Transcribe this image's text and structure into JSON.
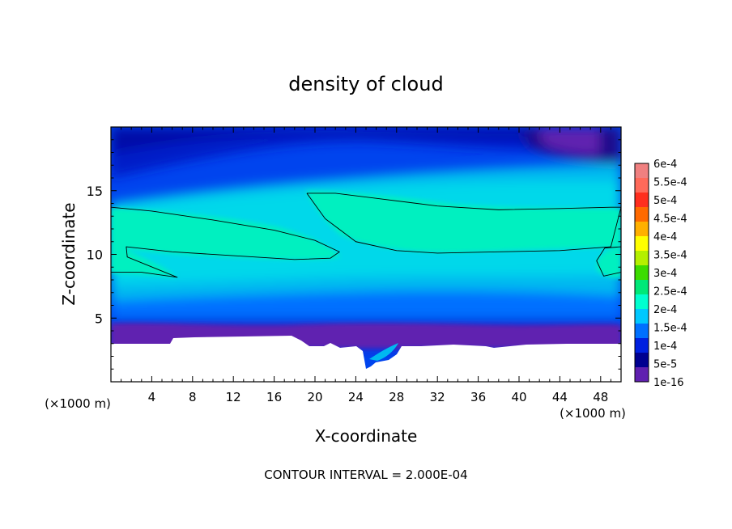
{
  "chart_data": {
    "type": "heatmap",
    "title": "density of cloud",
    "xlabel": "X-coordinate",
    "ylabel": "Z-coordinate",
    "x_unit": "(×1000 m)",
    "y_unit": "(×1000 m)",
    "xlim": [
      0,
      50
    ],
    "ylim": [
      0,
      20
    ],
    "x_ticks": [
      4,
      8,
      12,
      16,
      20,
      24,
      28,
      32,
      36,
      40,
      44,
      48
    ],
    "y_ticks": [
      5,
      10,
      15
    ],
    "contour_interval_label": "CONTOUR INTERVAL = 2.000E-04",
    "colorbar": {
      "labels": [
        "6e-4",
        "5.5e-4",
        "5e-4",
        "4.5e-4",
        "4e-4",
        "3.5e-4",
        "3e-4",
        "2.5e-4",
        "2e-4",
        "1.5e-4",
        "1e-4",
        "5e-5",
        "1e-16"
      ],
      "colors": [
        "#f08080",
        "#ff6a5a",
        "#ff2e1e",
        "#ff6a00",
        "#ffb000",
        "#ffff00",
        "#b4f000",
        "#3cdc00",
        "#00e878",
        "#00ffd0",
        "#00c8ff",
        "#0070ff",
        "#0020e0",
        "#000090",
        "#6020b0"
      ]
    },
    "series": [
      {
        "name": "2e-4 contour (upper band)",
        "x": [
          19.2,
          22,
          26,
          32,
          38,
          44,
          49,
          50,
          49,
          44,
          38,
          32,
          28,
          24,
          21,
          19.2
        ],
        "y": [
          14.8,
          14.8,
          14.4,
          13.8,
          13.5,
          13.6,
          13.7,
          13.7,
          10.6,
          10.3,
          10.2,
          10.1,
          10.3,
          11.0,
          12.8,
          14.8
        ]
      },
      {
        "name": "2e-4 contour (left band)",
        "x": [
          0,
          4,
          10,
          16,
          20,
          22.4,
          21.5,
          18,
          12,
          6,
          1.5,
          1.6,
          6.5,
          3,
          0
        ],
        "y": [
          13.7,
          13.4,
          12.7,
          11.9,
          11.1,
          10.2,
          9.7,
          9.6,
          9.9,
          10.2,
          10.6,
          9.8,
          8.2,
          8.6,
          8.6
        ]
      },
      {
        "name": "2e-4 contour (right edge lobe)",
        "x": [
          50,
          48.4,
          47.6,
          48.3,
          50
        ],
        "y": [
          10.6,
          10.5,
          9.5,
          8.3,
          8.6
        ]
      }
    ]
  }
}
